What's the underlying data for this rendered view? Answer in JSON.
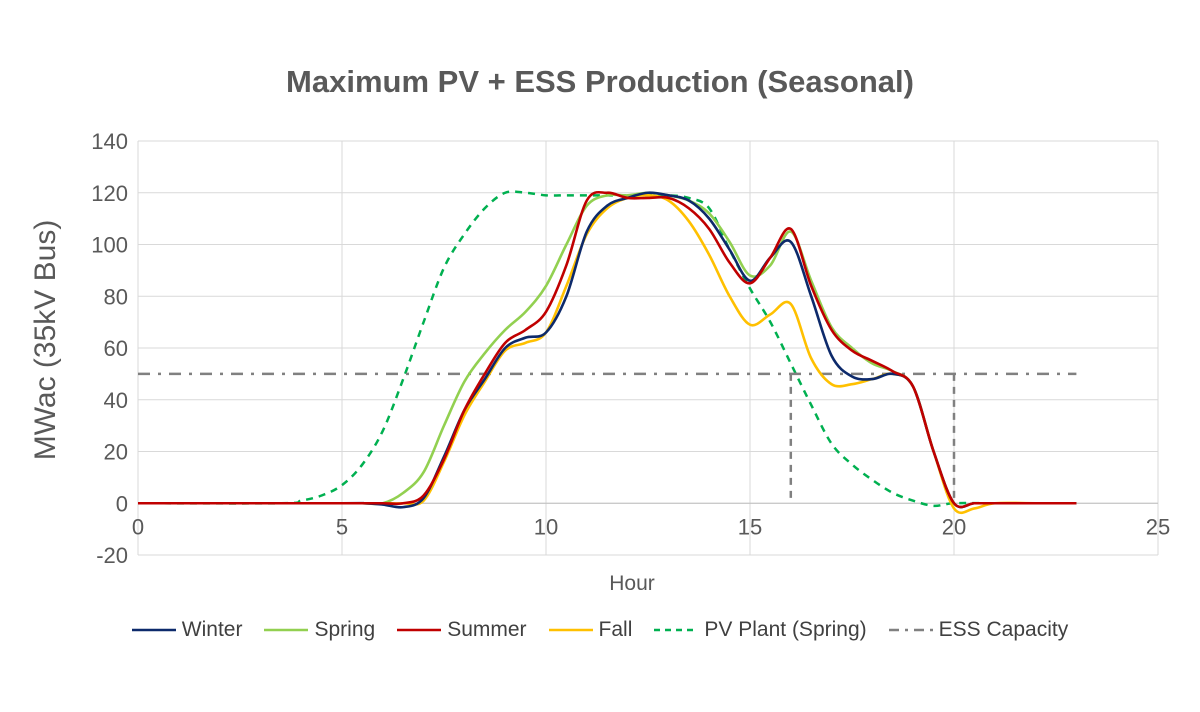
{
  "chart_data": {
    "type": "line",
    "title": "Maximum PV + ESS Production (Seasonal)",
    "xlabel": "Hour",
    "ylabel": "MWac (35kV Bus)",
    "xlim": [
      0,
      25
    ],
    "ylim": [
      -20,
      140
    ],
    "xticks": [
      "0",
      "5",
      "10",
      "15",
      "20",
      "25"
    ],
    "yticks": [
      "140",
      "120",
      "100",
      "80",
      "60",
      "40",
      "20",
      "0",
      "-20"
    ],
    "grid": true,
    "legend_position": "bottom",
    "series": [
      {
        "name": "Winter",
        "color": "#0d2a6b",
        "dash": "solid",
        "points": [
          [
            0,
            0
          ],
          [
            5,
            0
          ],
          [
            5.5,
            0
          ],
          [
            6,
            -0.5
          ],
          [
            6.5,
            -1.5
          ],
          [
            7,
            2
          ],
          [
            7.5,
            18
          ],
          [
            8,
            36
          ],
          [
            8.5,
            48
          ],
          [
            9,
            60
          ],
          [
            9.5,
            64
          ],
          [
            10,
            66
          ],
          [
            10.5,
            80
          ],
          [
            11,
            105
          ],
          [
            11.5,
            115
          ],
          [
            12,
            118
          ],
          [
            12.5,
            120
          ],
          [
            13,
            119
          ],
          [
            13.5,
            117
          ],
          [
            14,
            110
          ],
          [
            14.5,
            98
          ],
          [
            15,
            86
          ],
          [
            15.5,
            95
          ],
          [
            16,
            101
          ],
          [
            16.5,
            80
          ],
          [
            17,
            57
          ],
          [
            17.5,
            49
          ],
          [
            18,
            48
          ],
          [
            18.5,
            50
          ],
          [
            19,
            45
          ],
          [
            19.5,
            20
          ],
          [
            20,
            0
          ],
          [
            20.5,
            0
          ],
          [
            21,
            0
          ],
          [
            22,
            0
          ],
          [
            23,
            0
          ]
        ]
      },
      {
        "name": "Spring",
        "color": "#92d050",
        "dash": "solid",
        "points": [
          [
            0,
            0
          ],
          [
            5,
            0
          ],
          [
            5.5,
            0
          ],
          [
            6,
            0
          ],
          [
            6.5,
            4
          ],
          [
            7,
            12
          ],
          [
            7.5,
            30
          ],
          [
            8,
            47
          ],
          [
            8.5,
            58
          ],
          [
            9,
            67
          ],
          [
            9.5,
            74
          ],
          [
            10,
            84
          ],
          [
            10.5,
            100
          ],
          [
            11,
            115
          ],
          [
            11.5,
            119
          ],
          [
            12,
            119
          ],
          [
            12.5,
            120
          ],
          [
            13,
            119
          ],
          [
            13.5,
            117
          ],
          [
            14,
            112
          ],
          [
            14.5,
            101
          ],
          [
            15,
            88
          ],
          [
            15.5,
            92
          ],
          [
            16,
            105
          ],
          [
            16.5,
            86
          ],
          [
            17,
            68
          ],
          [
            17.5,
            60
          ],
          [
            18,
            54
          ],
          [
            18.5,
            51
          ],
          [
            19,
            45
          ],
          [
            19.5,
            20
          ],
          [
            20,
            0
          ],
          [
            20.5,
            0
          ],
          [
            21,
            0
          ],
          [
            22,
            0
          ],
          [
            23,
            0
          ]
        ]
      },
      {
        "name": "Summer",
        "color": "#c00000",
        "dash": "solid",
        "points": [
          [
            0,
            0
          ],
          [
            5,
            0
          ],
          [
            5.5,
            0
          ],
          [
            6,
            0
          ],
          [
            6.5,
            0
          ],
          [
            7,
            3
          ],
          [
            7.5,
            17
          ],
          [
            8,
            36
          ],
          [
            8.5,
            50
          ],
          [
            9,
            62
          ],
          [
            9.5,
            67
          ],
          [
            10,
            74
          ],
          [
            10.5,
            92
          ],
          [
            11,
            117
          ],
          [
            11.5,
            120
          ],
          [
            12,
            118
          ],
          [
            12.5,
            118
          ],
          [
            13,
            118
          ],
          [
            13.5,
            114
          ],
          [
            14,
            106
          ],
          [
            14.5,
            93
          ],
          [
            15,
            85
          ],
          [
            15.5,
            95
          ],
          [
            16,
            106
          ],
          [
            16.5,
            84
          ],
          [
            17,
            67
          ],
          [
            17.5,
            59
          ],
          [
            18,
            55
          ],
          [
            18.5,
            51
          ],
          [
            19,
            45
          ],
          [
            19.5,
            20
          ],
          [
            20,
            0
          ],
          [
            20.5,
            0
          ],
          [
            21,
            0
          ],
          [
            22,
            0
          ],
          [
            23,
            0
          ]
        ]
      },
      {
        "name": "Fall",
        "color": "#ffc000",
        "dash": "solid",
        "points": [
          [
            0,
            0
          ],
          [
            5,
            0
          ],
          [
            5.5,
            0
          ],
          [
            6,
            0
          ],
          [
            6.5,
            0
          ],
          [
            7,
            1
          ],
          [
            7.5,
            16
          ],
          [
            8,
            34
          ],
          [
            8.5,
            47
          ],
          [
            9,
            59
          ],
          [
            9.5,
            62
          ],
          [
            10,
            66
          ],
          [
            10.5,
            84
          ],
          [
            11,
            104
          ],
          [
            11.5,
            114
          ],
          [
            12,
            118
          ],
          [
            12.5,
            119
          ],
          [
            13,
            117
          ],
          [
            13.5,
            109
          ],
          [
            14,
            96
          ],
          [
            14.5,
            80
          ],
          [
            15,
            69
          ],
          [
            15.5,
            73
          ],
          [
            16,
            77
          ],
          [
            16.5,
            56
          ],
          [
            17,
            46
          ],
          [
            17.5,
            46
          ],
          [
            18,
            48
          ],
          [
            18.5,
            50
          ],
          [
            19,
            45
          ],
          [
            19.5,
            20
          ],
          [
            20,
            -2
          ],
          [
            20.5,
            -2
          ],
          [
            21,
            0
          ],
          [
            22,
            0
          ],
          [
            23,
            0
          ]
        ]
      },
      {
        "name": "PV Plant (Spring)",
        "color": "#00b050",
        "dash": "dashed",
        "points": [
          [
            0,
            0
          ],
          [
            3.5,
            0
          ],
          [
            4,
            1
          ],
          [
            4.5,
            3
          ],
          [
            5,
            7
          ],
          [
            5.5,
            15
          ],
          [
            6,
            28
          ],
          [
            6.5,
            48
          ],
          [
            7,
            70
          ],
          [
            7.5,
            91
          ],
          [
            8,
            104
          ],
          [
            8.5,
            114
          ],
          [
            9,
            120
          ],
          [
            9.5,
            120
          ],
          [
            10,
            119
          ],
          [
            10.5,
            119
          ],
          [
            11,
            119
          ],
          [
            11.5,
            119
          ],
          [
            12,
            119
          ],
          [
            12.5,
            119
          ],
          [
            13,
            119
          ],
          [
            13.5,
            118
          ],
          [
            14,
            114
          ],
          [
            14.5,
            98
          ],
          [
            15,
            83
          ],
          [
            15.5,
            70
          ],
          [
            16,
            54
          ],
          [
            16.5,
            38
          ],
          [
            17,
            23
          ],
          [
            17.5,
            15
          ],
          [
            18,
            9
          ],
          [
            18.5,
            4
          ],
          [
            19,
            1
          ],
          [
            19.5,
            -1
          ],
          [
            20,
            0
          ],
          [
            21,
            0
          ],
          [
            22,
            0
          ],
          [
            23,
            0
          ]
        ]
      },
      {
        "name": "ESS Capacity",
        "color": "#808080",
        "dash": "dashdot",
        "points": [
          [
            0,
            50
          ],
          [
            23,
            50
          ]
        ]
      }
    ],
    "annotations": [
      {
        "type": "vertical-line",
        "x": 16,
        "y_from": 0,
        "y_to": 50,
        "color": "#808080",
        "dash": "dashed"
      },
      {
        "type": "vertical-line",
        "x": 20,
        "y_from": 0,
        "y_to": 50,
        "color": "#808080",
        "dash": "dashed"
      }
    ]
  }
}
